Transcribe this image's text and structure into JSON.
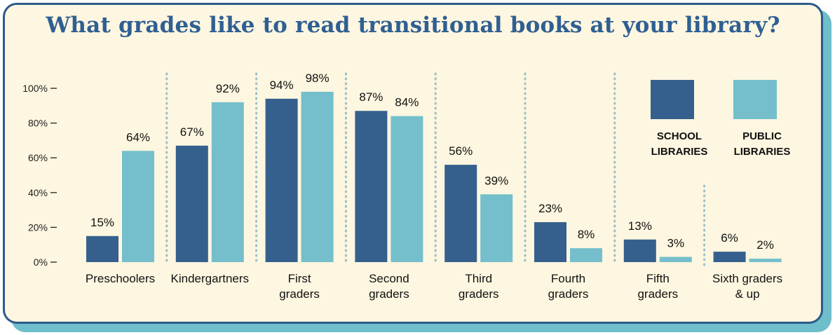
{
  "chart_data": {
    "type": "bar",
    "title": "What grades like to read transitional books at your library?",
    "categories": [
      [
        "Preschoolers"
      ],
      [
        "Kindergartners"
      ],
      [
        "First",
        "graders"
      ],
      [
        "Second",
        "graders"
      ],
      [
        "Third",
        "graders"
      ],
      [
        "Fourth",
        "graders"
      ],
      [
        "Fifth",
        "graders"
      ],
      [
        "Sixth graders",
        "& up"
      ]
    ],
    "series": [
      {
        "name": [
          "SCHOOL",
          "LIBRARIES"
        ],
        "color": "#35608d",
        "values": [
          15,
          67,
          94,
          87,
          56,
          23,
          13,
          6
        ],
        "labels": [
          "15%",
          "67%",
          "94%",
          "87%",
          "56%",
          "23%",
          "13%",
          "6%"
        ]
      },
      {
        "name": [
          "PUBLIC",
          "LIBRARIES"
        ],
        "color": "#74bfcb",
        "values": [
          64,
          92,
          98,
          84,
          39,
          8,
          3,
          2
        ],
        "labels": [
          "64%",
          "92%",
          "98%",
          "84%",
          "39%",
          "8%",
          "3%",
          "2%"
        ]
      }
    ],
    "ylim": [
      0,
      100
    ],
    "yticks": [
      0,
      20,
      40,
      60,
      80,
      100
    ],
    "ytick_labels": [
      "0%",
      "20%",
      "40%",
      "60%",
      "80%",
      "100%"
    ],
    "legend_position": "top-right",
    "grid": false
  }
}
